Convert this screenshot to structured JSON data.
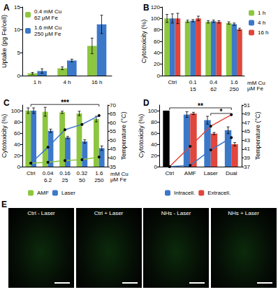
{
  "chart_data": [
    {
      "type": "bar",
      "title": "A",
      "ylabel": "Uptake (pg Fe/cell)",
      "categories": [
        "1 h",
        "4 h",
        "16 h"
      ],
      "series": [
        {
          "name": "0.4 mM Cu\n62 µM Fe",
          "color": "#8dc63f",
          "values": [
            0.5,
            1.6,
            6.5
          ],
          "errors": [
            0.2,
            0.3,
            1.7
          ]
        },
        {
          "name": "1.6 mM Cu\n250 µM Fe",
          "color": "#3c78c8",
          "values": [
            1.0,
            3.3,
            11.2
          ],
          "errors": [
            0.5,
            0.3,
            2.0
          ]
        }
      ],
      "ylim": [
        0,
        15
      ],
      "yticks": [
        0,
        5,
        10,
        15
      ],
      "grid": false,
      "legend": "top-left"
    },
    {
      "type": "bar",
      "title": "B",
      "ylabel": "Cytotoxicity (%)",
      "xlabel": "mM Cu\nµM Fe",
      "categories": [
        "Ctrl",
        "0.1\n15",
        "0.4\n62",
        "1.6\n250"
      ],
      "series": [
        {
          "name": "1 h",
          "color": "#8dc63f",
          "values": [
            100,
            95,
            94,
            92
          ],
          "errors": [
            7,
            2,
            2,
            2
          ]
        },
        {
          "name": "4 h",
          "color": "#3c78c8",
          "values": [
            100,
            96,
            95,
            90
          ],
          "errors": [
            8,
            2,
            2,
            2
          ]
        },
        {
          "name": "16 h",
          "color": "#e0463c",
          "values": [
            100,
            100,
            94,
            81
          ],
          "errors": [
            9,
            4,
            2,
            2
          ]
        }
      ],
      "ylim": [
        0,
        120
      ],
      "yticks": [
        0,
        20,
        40,
        60,
        80,
        100,
        120
      ],
      "grid": false,
      "legend": "right"
    },
    {
      "type": "bar",
      "title": "C",
      "ylabel": "Cytotoxicity (%)",
      "y2label": "Temperature (°C)",
      "xlabel": "mM Cu\nµM Fe",
      "categories": [
        "Ctrl",
        "0.04\n6.2",
        "0.16\n25",
        "0.32\n50",
        "1.6\n250"
      ],
      "series": [
        {
          "name": "AMF",
          "color": "#8dc63f",
          "values": [
            100,
            98,
            97,
            95,
            85
          ],
          "errors": [
            5,
            8,
            2,
            4,
            5
          ]
        },
        {
          "name": "Laser",
          "color": "#3c78c8",
          "values": [
            100,
            64,
            52,
            45,
            33
          ],
          "errors": [
            5,
            3,
            2,
            3,
            4
          ]
        },
        {
          "type": "line",
          "axis": "y2",
          "color": "#3c78c8",
          "marker": "circle",
          "values": [
            37,
            46,
            56,
            59,
            64
          ]
        },
        {
          "type": "line",
          "axis": "y2",
          "color": "#8dc63f",
          "marker": "circle",
          "values": [
            37,
            37.5,
            38.5,
            39,
            40.5
          ]
        }
      ],
      "annotations": [
        {
          "text": "***",
          "from": "Ctrl",
          "to": "1.6\n250"
        }
      ],
      "ylim": [
        0,
        110
      ],
      "yticks": [
        0,
        20,
        40,
        60,
        80,
        100
      ],
      "y2lim": [
        35,
        70
      ],
      "y2ticks": [
        35,
        40,
        45,
        50,
        55,
        60,
        65,
        70
      ],
      "grid": false,
      "legend": "bottom"
    },
    {
      "type": "bar",
      "title": "D",
      "ylabel": "Cytotoxicity (%)",
      "y2label": "Temperature (°C)",
      "categories": [
        "Ctrl",
        "AMF",
        "Laser",
        "Dual"
      ],
      "series": [
        {
          "name": "Intracell.",
          "color": "#3c78c8",
          "colors": [
            "#000000",
            "#3c78c8",
            "#3c78c8",
            "#3c78c8"
          ],
          "values": [
            100,
            93,
            83,
            65
          ],
          "errors": [
            0,
            5,
            7,
            6
          ]
        },
        {
          "name": "Extracell.",
          "color": "#e0463c",
          "values": [
            null,
            95,
            59,
            40
          ],
          "errors": [
            null,
            2,
            2,
            3
          ]
        },
        {
          "type": "line",
          "axis": "y2",
          "color": "#3c78c8",
          "marker": "circle",
          "values": [
            37,
            37.3,
            40.8,
            43.6
          ]
        },
        {
          "type": "line",
          "axis": "y2",
          "color": "#e0463c",
          "marker": "circle",
          "values": [
            37,
            41.6,
            46.2,
            48.8
          ]
        }
      ],
      "annotations": [
        {
          "text": "**",
          "from": "Ctrl",
          "to": "Dual"
        },
        {
          "text": "*",
          "from": "Laser",
          "to": "Dual"
        }
      ],
      "ylim": [
        0,
        110
      ],
      "yticks": [
        0,
        20,
        40,
        60,
        80,
        100
      ],
      "y2lim": [
        37,
        51
      ],
      "y2ticks": [
        37,
        39,
        41,
        43,
        45,
        47,
        49,
        51
      ],
      "grid": false,
      "legend": "bottom"
    }
  ],
  "panel_E": {
    "title": "E",
    "images": [
      "Ctrl - Laser",
      "Ctrl + Laser",
      "NHs - Laser",
      "NHs + Laser"
    ]
  }
}
